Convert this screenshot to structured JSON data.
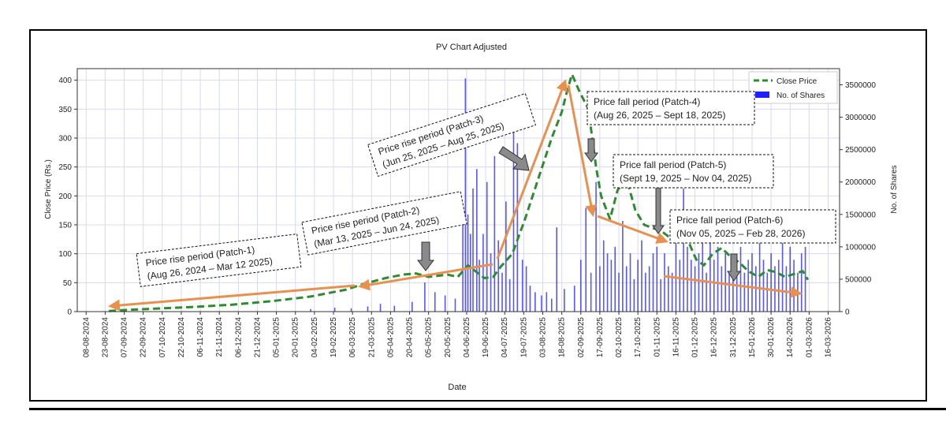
{
  "chart_data": {
    "type": "line+bar",
    "title": "PV Chart Adjusted",
    "xlabel": "Date",
    "ylabel": "Close Price (Rs.)",
    "y2label": "No. of Shares",
    "ylim": [
      0,
      420
    ],
    "y2lim": [
      0,
      3750000
    ],
    "yticks": [
      0,
      50,
      100,
      150,
      200,
      250,
      300,
      350,
      400
    ],
    "y2ticks": [
      0,
      500000,
      1000000,
      1500000,
      2000000,
      2500000,
      3000000,
      3500000
    ],
    "xlim": [
      "2024-08-01",
      "2026-03-25"
    ],
    "xticks": [
      "08-08-2024",
      "23-08-2024",
      "07-09-2024",
      "22-09-2024",
      "07-10-2024",
      "22-10-2024",
      "06-11-2024",
      "21-11-2024",
      "06-12-2024",
      "21-12-2024",
      "05-01-2025",
      "20-01-2025",
      "04-02-2025",
      "19-02-2025",
      "06-03-2025",
      "21-03-2025",
      "05-04-2025",
      "20-04-2025",
      "05-05-2025",
      "20-05-2025",
      "04-06-2025",
      "19-06-2025",
      "04-07-2025",
      "19-07-2025",
      "03-08-2025",
      "18-08-2025",
      "02-09-2025",
      "17-09-2025",
      "02-10-2025",
      "17-10-2025",
      "01-11-2025",
      "16-11-2025",
      "01-12-2025",
      "16-12-2025",
      "31-12-2025",
      "15-01-2026",
      "30-01-2026",
      "14-02-2026",
      "01-03-2026",
      "16-03-2026"
    ],
    "grid": true,
    "legend_position": "top-right",
    "series": [
      {
        "name": "Close Price",
        "type": "line",
        "style": "dashed",
        "color": "#2e8b2e",
        "x": [
          "2024-08-26",
          "2024-09-10",
          "2024-10-01",
          "2024-11-01",
          "2024-12-01",
          "2025-01-01",
          "2025-02-01",
          "2025-03-01",
          "2025-03-15",
          "2025-04-01",
          "2025-04-15",
          "2025-04-25",
          "2025-05-05",
          "2025-05-20",
          "2025-05-28",
          "2025-06-05",
          "2025-06-12",
          "2025-06-18",
          "2025-06-25",
          "2025-07-01",
          "2025-07-10",
          "2025-07-20",
          "2025-08-01",
          "2025-08-10",
          "2025-08-18",
          "2025-08-22",
          "2025-08-26",
          "2025-09-01",
          "2025-09-08",
          "2025-09-14",
          "2025-09-18",
          "2025-09-25",
          "2025-10-01",
          "2025-10-08",
          "2025-10-15",
          "2025-10-22",
          "2025-10-28",
          "2025-11-04",
          "2025-11-10",
          "2025-11-18",
          "2025-11-25",
          "2025-12-02",
          "2025-12-08",
          "2025-12-15",
          "2025-12-22",
          "2025-12-29",
          "2026-01-05",
          "2026-01-12",
          "2026-01-20",
          "2026-01-27",
          "2026-02-03",
          "2026-02-10",
          "2026-02-17",
          "2026-02-24",
          "2026-02-28"
        ],
        "y": [
          1,
          3,
          5,
          8,
          12,
          18,
          26,
          38,
          48,
          58,
          64,
          66,
          60,
          64,
          60,
          80,
          68,
          58,
          60,
          78,
          100,
          160,
          240,
          300,
          345,
          380,
          410,
          380,
          350,
          250,
          200,
          160,
          210,
          230,
          175,
          150,
          145,
          140,
          130,
          120,
          125,
          90,
          80,
          100,
          110,
          95,
          85,
          70,
          60,
          72,
          68,
          60,
          65,
          70,
          55
        ]
      },
      {
        "name": "No. of Shares",
        "type": "bar",
        "color": "#1f1fff",
        "x": [
          "2025-02-01",
          "2025-02-20",
          "2025-03-05",
          "2025-03-18",
          "2025-03-28",
          "2025-04-08",
          "2025-04-22",
          "2025-05-02",
          "2025-05-10",
          "2025-05-18",
          "2025-05-26",
          "2025-06-01",
          "2025-06-03",
          "2025-06-05",
          "2025-06-07",
          "2025-06-09",
          "2025-06-12",
          "2025-06-14",
          "2025-06-17",
          "2025-06-20",
          "2025-06-23",
          "2025-06-26",
          "2025-06-29",
          "2025-07-02",
          "2025-07-05",
          "2025-07-08",
          "2025-07-11",
          "2025-07-14",
          "2025-07-18",
          "2025-07-21",
          "2025-07-24",
          "2025-07-28",
          "2025-08-02",
          "2025-08-06",
          "2025-08-10",
          "2025-08-14",
          "2025-08-20",
          "2025-08-28",
          "2025-09-02",
          "2025-09-06",
          "2025-09-10",
          "2025-09-14",
          "2025-09-17",
          "2025-09-20",
          "2025-09-23",
          "2025-09-26",
          "2025-09-29",
          "2025-10-02",
          "2025-10-05",
          "2025-10-08",
          "2025-10-11",
          "2025-10-14",
          "2025-10-17",
          "2025-10-20",
          "2025-10-23",
          "2025-10-26",
          "2025-10-29",
          "2025-11-01",
          "2025-11-04",
          "2025-11-07",
          "2025-11-10",
          "2025-11-13",
          "2025-11-16",
          "2025-11-19",
          "2025-11-22",
          "2025-11-25",
          "2025-11-28",
          "2025-12-01",
          "2025-12-04",
          "2025-12-07",
          "2025-12-10",
          "2025-12-13",
          "2025-12-16",
          "2025-12-19",
          "2025-12-22",
          "2025-12-25",
          "2025-12-28",
          "2025-12-31",
          "2026-01-03",
          "2026-01-06",
          "2026-01-09",
          "2026-01-12",
          "2026-01-15",
          "2026-01-18",
          "2026-01-21",
          "2026-01-24",
          "2026-01-27",
          "2026-01-30",
          "2026-02-02",
          "2026-02-05",
          "2026-02-08",
          "2026-02-11",
          "2026-02-14",
          "2026-02-17",
          "2026-02-20",
          "2026-02-23",
          "2026-02-26"
        ],
        "values": [
          40000,
          60000,
          50000,
          80000,
          120000,
          90000,
          150000,
          450000,
          300000,
          250000,
          200000,
          1400000,
          3600000,
          1500000,
          1200000,
          1900000,
          2200000,
          800000,
          1200000,
          2000000,
          900000,
          2400000,
          1100000,
          600000,
          1700000,
          500000,
          2900000,
          2600000,
          800000,
          700000,
          400000,
          300000,
          250000,
          300000,
          200000,
          1300000,
          350000,
          400000,
          800000,
          1600000,
          600000,
          2000000,
          700000,
          1100000,
          900000,
          800000,
          1000000,
          600000,
          1400000,
          700000,
          900000,
          500000,
          800000,
          1100000,
          600000,
          700000,
          900000,
          1000000,
          500000,
          900000,
          700000,
          600000,
          1100000,
          800000,
          1900000,
          1000000,
          800000,
          700000,
          900000,
          1500000,
          600000,
          1200000,
          800000,
          1000000,
          700000,
          900000,
          600000,
          800000,
          700000,
          1000000,
          600000,
          800000,
          900000,
          700000,
          1300000,
          800000,
          600000,
          900000,
          700000,
          800000,
          1200000,
          700000,
          1000000,
          800000,
          600000,
          900000,
          1000000
        ]
      }
    ],
    "annotations": [
      {
        "id": "patch1",
        "line1": "Price rise period (Patch-1)",
        "line2": "(Aug 26, 2024 – Mar 12 2025)"
      },
      {
        "id": "patch2",
        "line1": "Price rise period (Patch-2)",
        "line2": "(Mar 13, 2025 – Jun 24, 2025)"
      },
      {
        "id": "patch3",
        "line1": "Price rise period (Patch-3)",
        "line2": "(Jun 25, 2025 – Aug 25, 2025)"
      },
      {
        "id": "patch4",
        "line1": "Price fall period (Patch-4)",
        "line2": "(Aug 26, 2025 – Sept 18, 2025)"
      },
      {
        "id": "patch5",
        "line1": "Price fall period (Patch-5)",
        "line2": "(Sept 19, 2025 – Nov 04, 2025)"
      },
      {
        "id": "patch6",
        "line1": "Price fall period (Patch-6)",
        "line2": "(Nov 05, 2025 – Feb 28, 2026)"
      }
    ],
    "colors": {
      "arrow": "#e8914f",
      "pointer": "#7a7a7a",
      "grid": "#d8d8f4"
    }
  }
}
